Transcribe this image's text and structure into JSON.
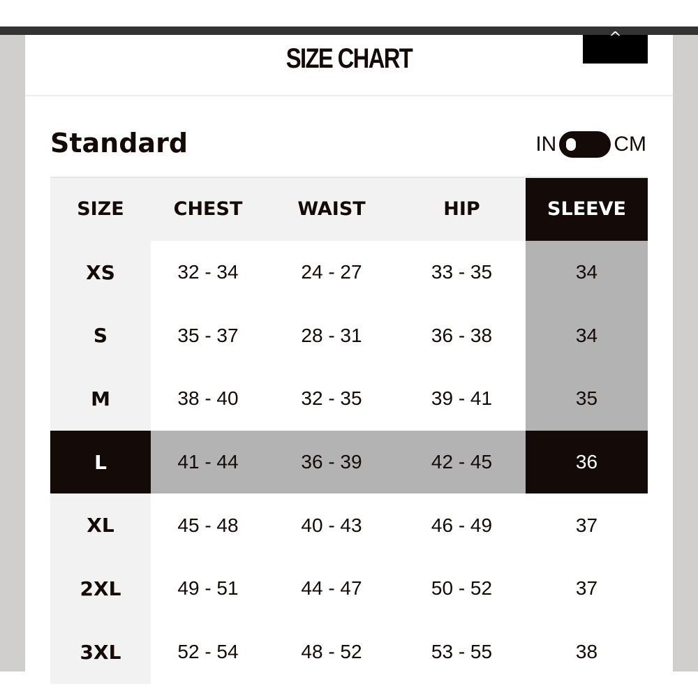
{
  "modal": {
    "title": "SIZE CHART",
    "close_icon": "chevron-up-icon",
    "close_glyph": "^"
  },
  "section": {
    "title": "Standard",
    "unit_left": "IN",
    "unit_right": "CM",
    "unit_selected": "IN"
  },
  "table": {
    "headers": [
      "SIZE",
      "CHEST",
      "WAIST",
      "HIP",
      "SLEEVE"
    ],
    "highlighted_row": "L",
    "highlighted_column": "SLEEVE",
    "rows": [
      [
        "XS",
        "32 - 34",
        "24 - 27",
        "33 - 35",
        "34"
      ],
      [
        "S",
        "35 - 37",
        "28 - 31",
        "36 - 38",
        "34"
      ],
      [
        "M",
        "38 - 40",
        "32 - 35",
        "39 - 41",
        "35"
      ],
      [
        "L",
        "41 - 44",
        "36 - 39",
        "42 - 45",
        "36"
      ],
      [
        "XL",
        "45 - 48",
        "40 - 43",
        "46 - 49",
        "37"
      ],
      [
        "2XL",
        "49 - 51",
        "44 - 47",
        "50 - 52",
        "37"
      ],
      [
        "3XL",
        "52 - 54",
        "48 - 52",
        "53 - 55",
        "38"
      ]
    ]
  },
  "colors": {
    "highlight_dark": "#140b08",
    "highlight_gray": "#b3b3b3",
    "size_column_bg": "#f2f2f2"
  }
}
